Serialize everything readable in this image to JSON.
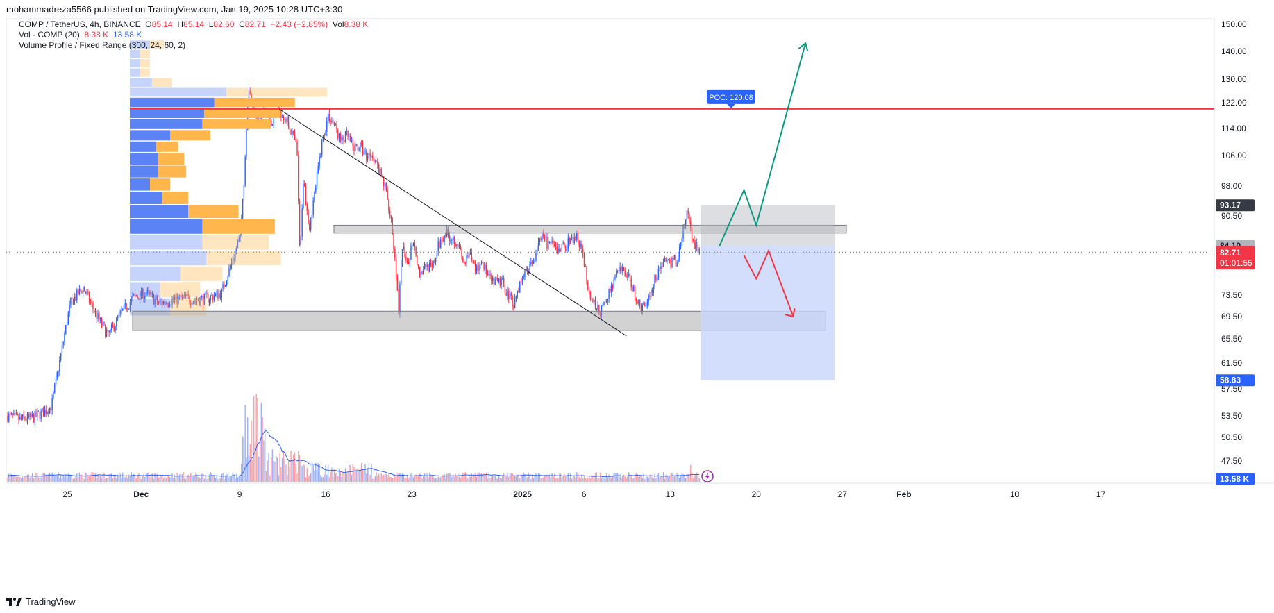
{
  "header": {
    "published_text": "mohammadreza5566 published on TradingView.com, Jan 19, 2025 10:28 UTC+3:30"
  },
  "legend": {
    "symbol": "COMP / TetherUS, 4h, BINANCE",
    "o_label": "O",
    "o_value": "85.14",
    "h_label": "H",
    "h_value": "85.14",
    "l_label": "L",
    "l_value": "82.60",
    "c_label": "C",
    "c_value": "82.71",
    "change": "−2.43 (−2.85%)",
    "vol_label": "Vol",
    "vol_value": "8.38 K",
    "vol_indicator": "Vol · COMP (20)",
    "vol_now": "8.38 K",
    "vol_ma": "13.58 K",
    "vp": "Volume Profile / Fixed Range (300, 24, 60, 2)"
  },
  "footer": {
    "brand": "TradingView"
  },
  "colors": {
    "up": "#2962ff",
    "down": "#f23645",
    "poc_line": "#f23645",
    "profile_up": "#5b83f5",
    "profile_down": "#ffb74d",
    "arrow_up": "#089981",
    "arrow_down": "#f23645",
    "zone": "#a6a6a6",
    "short_target": "#c7d6fb"
  },
  "chart_data": {
    "type": "candlestick",
    "symbol": "COMP / TetherUS",
    "interval": "4h",
    "exchange": "BINANCE",
    "y_axis_labels": [
      "150.00",
      "140.00",
      "130.00",
      "122.00",
      "114.00",
      "106.00",
      "98.00",
      "90.50",
      "73.50",
      "69.50",
      "65.50",
      "61.50",
      "57.50",
      "53.50",
      "50.50",
      "47.50"
    ],
    "x_axis_labels": [
      "25",
      "Dec",
      "9",
      "16",
      "23",
      "2025",
      "6",
      "13",
      "20",
      "27",
      "Feb",
      "10",
      "17"
    ],
    "ohlc_last": {
      "open": 85.14,
      "high": 85.14,
      "low": 82.6,
      "close": 82.71,
      "change": -2.43,
      "change_pct": -2.85
    },
    "price_badges": [
      {
        "label": "93.17",
        "kind": "gray"
      },
      {
        "label": "84.10",
        "kind": "gray"
      },
      {
        "label": "82.71",
        "kind": "last"
      },
      {
        "label": "01:01:55",
        "kind": "countdown"
      },
      {
        "label": "58.83",
        "kind": "blue"
      },
      {
        "label": "13.58 K",
        "kind": "blue"
      }
    ],
    "poc": {
      "label": "POC: 120.08",
      "price": 120.08
    },
    "resistance_zone": [
      86.8,
      88.5
    ],
    "support_zone": [
      67.0,
      70.5
    ],
    "short_position": {
      "stop_top": 93.17,
      "entry": 84.1,
      "target": 58.83
    },
    "trendline": {
      "from": [
        "Dec 12",
        120.0
      ],
      "to": [
        "Jan 9",
        66.0
      ]
    },
    "green_path": [
      [
        "Jan 17",
        84.0
      ],
      [
        "Jan 19",
        97.0
      ],
      [
        "Jan 20",
        88.5
      ],
      [
        "Jan 24",
        143.0
      ]
    ],
    "red_path": [
      [
        "Jan 19",
        82.0
      ],
      [
        "Jan 20",
        77.0
      ],
      [
        "Jan 21",
        83.0
      ],
      [
        "Jan 23",
        69.5
      ]
    ],
    "volume_profile": {
      "price_range": [
        69.5,
        144.0
      ],
      "rows": [
        {
          "up": 0.1,
          "down": 0.07
        },
        {
          "up": 0.05,
          "down": 0.05
        },
        {
          "up": 0.05,
          "down": 0.05
        },
        {
          "up": 0.05,
          "down": 0.05
        },
        {
          "up": 0.11,
          "down": 0.1
        },
        {
          "up": 0.48,
          "down": 0.5
        },
        {
          "up": 0.42,
          "down": 0.4
        },
        {
          "up": 0.37,
          "down": 0.38
        },
        {
          "up": 0.36,
          "down": 0.34
        },
        {
          "up": 0.2,
          "down": 0.2
        },
        {
          "up": 0.13,
          "down": 0.11
        },
        {
          "up": 0.14,
          "down": 0.13
        },
        {
          "up": 0.14,
          "down": 0.14
        },
        {
          "up": 0.1,
          "down": 0.1
        },
        {
          "up": 0.16,
          "down": 0.13
        },
        {
          "up": 0.29,
          "down": 0.25
        },
        {
          "up": 0.36,
          "down": 0.36
        },
        {
          "up": 0.36,
          "down": 0.33
        },
        {
          "up": 0.38,
          "down": 0.37
        },
        {
          "up": 0.25,
          "down": 0.21
        },
        {
          "up": 0.15,
          "down": 0.2
        },
        {
          "up": 0.2,
          "down": 0.18
        }
      ]
    },
    "volume_ma_label": "13.58 K"
  }
}
